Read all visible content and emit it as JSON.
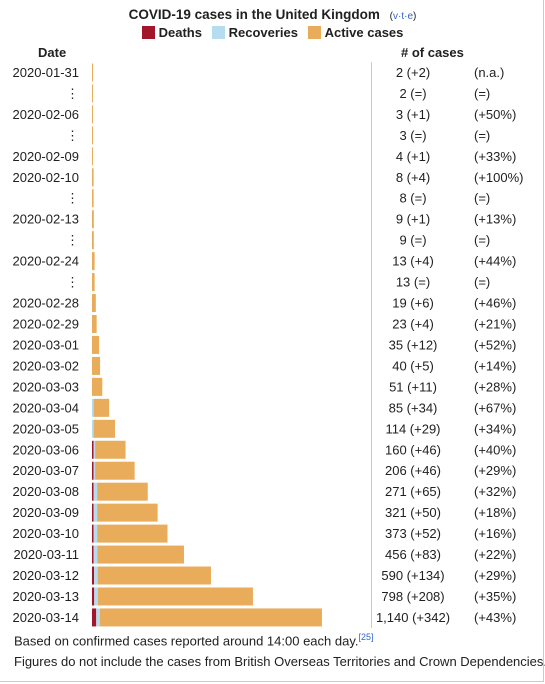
{
  "title": "COVID-19 cases in the United Kingdom",
  "vte": {
    "v": "v",
    "t": "t",
    "e": "e"
  },
  "colors": {
    "deaths": "#a2162b",
    "recoveries": "#b5dcef",
    "active": "#e9ac5b"
  },
  "legend": [
    "Deaths",
    "Recoveries",
    "Active cases"
  ],
  "headers": {
    "date": "Date",
    "cases": "# of cases"
  },
  "chart_data": {
    "type": "bar",
    "orientation": "horizontal",
    "stacked": true,
    "series_names": [
      "Deaths",
      "Recoveries",
      "Active cases"
    ],
    "rows": [
      {
        "date": "2020-01-31",
        "deaths": 0,
        "recoveries": 0,
        "cases": 2,
        "cases_text": "2 (+2)",
        "change": "(n.a.)"
      },
      {
        "date": "⋮",
        "deaths": 0,
        "recoveries": 0,
        "cases": 2,
        "cases_text": "2 (=)",
        "change": "(=)"
      },
      {
        "date": "2020-02-06",
        "deaths": 0,
        "recoveries": 0,
        "cases": 3,
        "cases_text": "3 (+1)",
        "change": "(+50%)"
      },
      {
        "date": "⋮",
        "deaths": 0,
        "recoveries": 0,
        "cases": 3,
        "cases_text": "3 (=)",
        "change": "(=)"
      },
      {
        "date": "2020-02-09",
        "deaths": 0,
        "recoveries": 0,
        "cases": 4,
        "cases_text": "4 (+1)",
        "change": "(+33%)"
      },
      {
        "date": "2020-02-10",
        "deaths": 0,
        "recoveries": 0,
        "cases": 8,
        "cases_text": "8 (+4)",
        "change": "(+100%)"
      },
      {
        "date": "⋮",
        "deaths": 0,
        "recoveries": 0,
        "cases": 8,
        "cases_text": "8 (=)",
        "change": "(=)"
      },
      {
        "date": "2020-02-13",
        "deaths": 0,
        "recoveries": 0,
        "cases": 9,
        "cases_text": "9 (+1)",
        "change": "(+13%)"
      },
      {
        "date": "⋮",
        "deaths": 0,
        "recoveries": 0,
        "cases": 9,
        "cases_text": "9 (=)",
        "change": "(=)"
      },
      {
        "date": "2020-02-24",
        "deaths": 0,
        "recoveries": 0,
        "cases": 13,
        "cases_text": "13 (+4)",
        "change": "(+44%)"
      },
      {
        "date": "⋮",
        "deaths": 0,
        "recoveries": 0,
        "cases": 13,
        "cases_text": "13 (=)",
        "change": "(=)"
      },
      {
        "date": "2020-02-28",
        "deaths": 0,
        "recoveries": 0,
        "cases": 19,
        "cases_text": "19 (+6)",
        "change": "(+46%)"
      },
      {
        "date": "2020-02-29",
        "deaths": 0,
        "recoveries": 0,
        "cases": 23,
        "cases_text": "23 (+4)",
        "change": "(+21%)"
      },
      {
        "date": "2020-03-01",
        "deaths": 0,
        "recoveries": 0,
        "cases": 35,
        "cases_text": "35 (+12)",
        "change": "(+52%)"
      },
      {
        "date": "2020-03-02",
        "deaths": 0,
        "recoveries": 0,
        "cases": 40,
        "cases_text": "40 (+5)",
        "change": "(+14%)"
      },
      {
        "date": "2020-03-03",
        "deaths": 0,
        "recoveries": 0,
        "cases": 51,
        "cases_text": "51 (+11)",
        "change": "(+28%)"
      },
      {
        "date": "2020-03-04",
        "deaths": 0,
        "recoveries": 8,
        "cases": 85,
        "cases_text": "85 (+34)",
        "change": "(+67%)"
      },
      {
        "date": "2020-03-05",
        "deaths": 0,
        "recoveries": 8,
        "cases": 114,
        "cases_text": "114 (+29)",
        "change": "(+34%)"
      },
      {
        "date": "2020-03-06",
        "deaths": 1,
        "recoveries": 8,
        "cases": 160,
        "cases_text": "160 (+46)",
        "change": "(+40%)"
      },
      {
        "date": "2020-03-07",
        "deaths": 2,
        "recoveries": 8,
        "cases": 206,
        "cases_text": "206 (+46)",
        "change": "(+29%)"
      },
      {
        "date": "2020-03-08",
        "deaths": 2,
        "recoveries": 18,
        "cases": 271,
        "cases_text": "271 (+65)",
        "change": "(+32%)"
      },
      {
        "date": "2020-03-09",
        "deaths": 3,
        "recoveries": 18,
        "cases": 321,
        "cases_text": "321 (+50)",
        "change": "(+18%)"
      },
      {
        "date": "2020-03-10",
        "deaths": 6,
        "recoveries": 18,
        "cases": 373,
        "cases_text": "373 (+52)",
        "change": "(+16%)"
      },
      {
        "date": "2020-03-11",
        "deaths": 8,
        "recoveries": 18,
        "cases": 456,
        "cases_text": "456 (+83)",
        "change": "(+22%)"
      },
      {
        "date": "2020-03-12",
        "deaths": 10,
        "recoveries": 18,
        "cases": 590,
        "cases_text": "590 (+134)",
        "change": "(+29%)"
      },
      {
        "date": "2020-03-13",
        "deaths": 11,
        "recoveries": 18,
        "cases": 798,
        "cases_text": "798 (+208)",
        "change": "(+35%)"
      },
      {
        "date": "2020-03-14",
        "deaths": 21,
        "recoveries": 18,
        "cases": 1140,
        "cases_text": "1,140 (+342)",
        "change": "(+43%)"
      }
    ]
  },
  "notes": {
    "line1": "Based on confirmed cases reported around 14:00 each day.",
    "ref": "[25]",
    "line2": "Figures do not include the cases from British Overseas Territories and Crown Dependencies."
  }
}
